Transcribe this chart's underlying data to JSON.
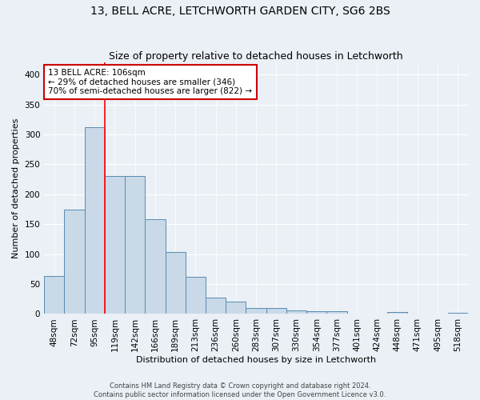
{
  "title": "13, BELL ACRE, LETCHWORTH GARDEN CITY, SG6 2BS",
  "subtitle": "Size of property relative to detached houses in Letchworth",
  "xlabel": "Distribution of detached houses by size in Letchworth",
  "ylabel": "Number of detached properties",
  "categories": [
    "48sqm",
    "72sqm",
    "95sqm",
    "119sqm",
    "142sqm",
    "166sqm",
    "189sqm",
    "213sqm",
    "236sqm",
    "260sqm",
    "283sqm",
    "307sqm",
    "330sqm",
    "354sqm",
    "377sqm",
    "401sqm",
    "424sqm",
    "448sqm",
    "471sqm",
    "495sqm",
    "518sqm"
  ],
  "values": [
    63,
    174,
    312,
    230,
    230,
    158,
    103,
    62,
    27,
    21,
    10,
    10,
    6,
    5,
    5,
    0,
    0,
    3,
    0,
    0,
    2
  ],
  "bar_color": "#c9d9e8",
  "bar_edge_color": "#5a8ab0",
  "annotation_text": "13 BELL ACRE: 106sqm\n← 29% of detached houses are smaller (346)\n70% of semi-detached houses are larger (822) →",
  "annotation_box_color": "#ffffff",
  "annotation_box_edge": "#cc0000",
  "footer_text": "Contains HM Land Registry data © Crown copyright and database right 2024.\nContains public sector information licensed under the Open Government Licence v3.0.",
  "ylim": [
    0,
    420
  ],
  "yticks": [
    0,
    50,
    100,
    150,
    200,
    250,
    300,
    350,
    400
  ],
  "bg_color": "#eaf0f6",
  "grid_color": "#ffffff",
  "title_fontsize": 10,
  "subtitle_fontsize": 9,
  "axis_label_fontsize": 8,
  "tick_fontsize": 7.5,
  "footer_fontsize": 6
}
